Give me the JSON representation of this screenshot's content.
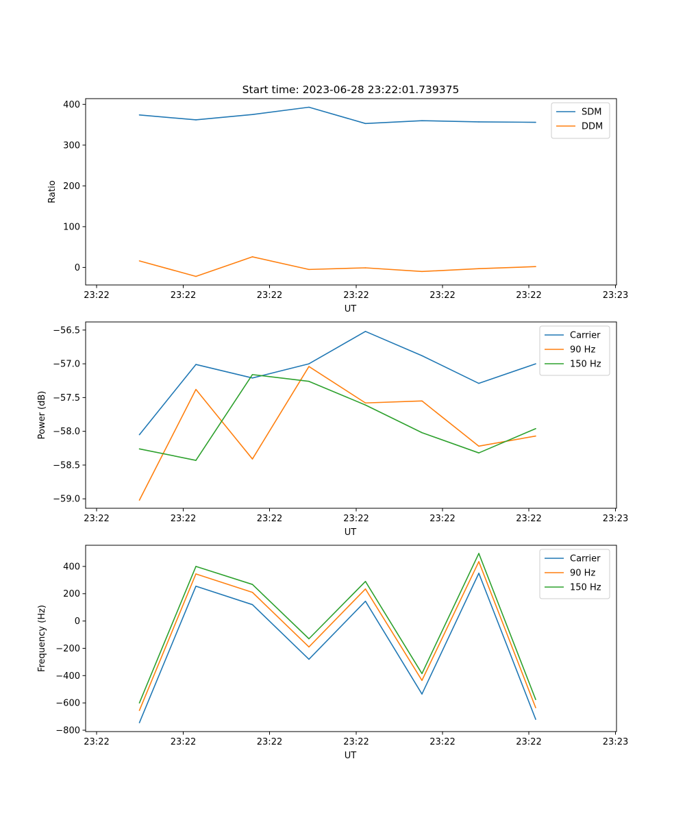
{
  "figure": {
    "title": "Start time: 2023-06-28 23:22:01.739375"
  },
  "chart_data": [
    {
      "type": "line",
      "title": "Start time: 2023-06-28 23:22:01.739375",
      "xlabel": "UT",
      "ylabel": "Ratio",
      "x_tick_labels": [
        "23:22",
        "23:22",
        "23:22",
        "23:22",
        "23:22",
        "23:22",
        "23:23"
      ],
      "y_ticks": [
        0,
        100,
        200,
        300,
        400
      ],
      "y_tick_labels": [
        "0",
        "100",
        "200",
        "300",
        "400"
      ],
      "ylim": [
        -43,
        414
      ],
      "grid": false,
      "legend_position": "upper right",
      "series": [
        {
          "name": "SDM",
          "color": "#1f77b4",
          "values": [
            374,
            362,
            375,
            393,
            353,
            360,
            357,
            356
          ]
        },
        {
          "name": "DDM",
          "color": "#ff7f0e",
          "values": [
            16,
            -22,
            26,
            -5,
            -1,
            -10,
            -3,
            2
          ]
        }
      ]
    },
    {
      "type": "line",
      "title": "",
      "xlabel": "UT",
      "ylabel": "Power (dB)",
      "x_tick_labels": [
        "23:22",
        "23:22",
        "23:22",
        "23:22",
        "23:22",
        "23:22",
        "23:23"
      ],
      "y_ticks": [
        -59.0,
        -58.5,
        -58.0,
        -57.5,
        -57.0,
        -56.5
      ],
      "y_tick_labels": [
        "−59.0",
        "−58.5",
        "−58.0",
        "−57.5",
        "−57.0",
        "−56.5"
      ],
      "ylim": [
        -59.14,
        -56.38
      ],
      "grid": false,
      "legend_position": "upper right",
      "series": [
        {
          "name": "Carrier",
          "color": "#1f77b4",
          "values": [
            -58.05,
            -57.01,
            -57.21,
            -57.0,
            -56.52,
            -56.88,
            -57.29,
            -57.0
          ]
        },
        {
          "name": "90 Hz",
          "color": "#ff7f0e",
          "values": [
            -59.02,
            -57.38,
            -58.41,
            -57.04,
            -57.58,
            -57.55,
            -58.22,
            -58.07
          ]
        },
        {
          "name": "150 Hz",
          "color": "#2ca02c",
          "values": [
            -58.26,
            -58.43,
            -57.16,
            -57.26,
            -57.61,
            -58.02,
            -58.32,
            -57.96
          ]
        }
      ]
    },
    {
      "type": "line",
      "title": "",
      "xlabel": "UT",
      "ylabel": "Frequency (Hz)",
      "x_tick_labels": [
        "23:22",
        "23:22",
        "23:22",
        "23:22",
        "23:22",
        "23:22",
        "23:23"
      ],
      "y_ticks": [
        -800,
        -600,
        -400,
        -200,
        0,
        200,
        400
      ],
      "y_tick_labels": [
        "−800",
        "−600",
        "−400",
        "−200",
        "0",
        "200",
        "400"
      ],
      "ylim": [
        -810,
        555
      ],
      "grid": false,
      "legend_position": "upper right",
      "series": [
        {
          "name": "Carrier",
          "color": "#1f77b4",
          "values": [
            -745,
            255,
            120,
            -280,
            145,
            -535,
            350,
            -720
          ]
        },
        {
          "name": "90 Hz",
          "color": "#ff7f0e",
          "values": [
            -655,
            345,
            210,
            -190,
            235,
            -435,
            435,
            -635
          ]
        },
        {
          "name": "150 Hz",
          "color": "#2ca02c",
          "values": [
            -600,
            400,
            268,
            -130,
            290,
            -385,
            495,
            -575
          ]
        }
      ]
    }
  ]
}
